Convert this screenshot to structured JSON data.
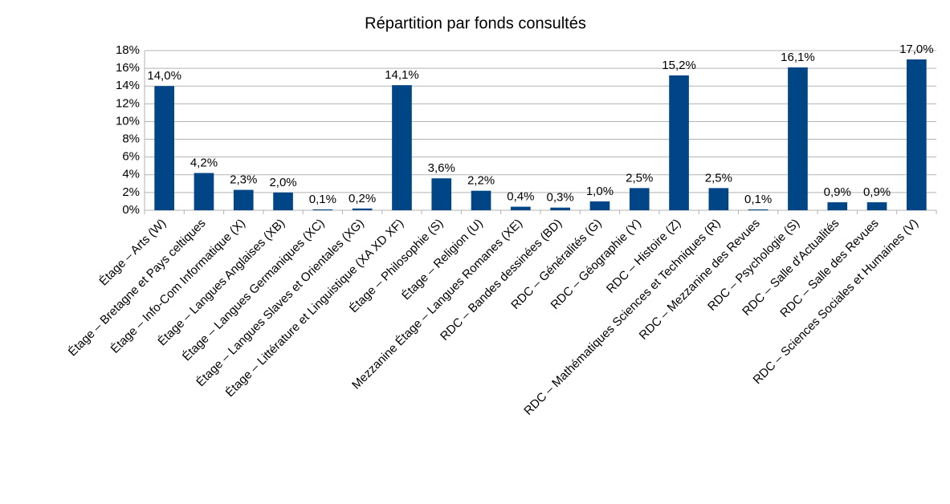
{
  "chart_data": {
    "type": "bar",
    "title": "Répartition par fonds consultés",
    "categories": [
      "Étage – Arts (W)",
      "Étage – Bretagne et Pays celtiques",
      "Étage – Info-Com Informatique (X)",
      "Étage – Langues Anglaises (XB)",
      "Étage – Langues Germaniques (XC)",
      "Étage – Langues Slaves et Orientales (XG)",
      "Étage – Littérature et Linguistique (XA XD XF)",
      "Étage – Philosophie (S)",
      "Étage – Religion (U)",
      "Mezzanine Étage – Langues Romanes (XE)",
      "RDC – Bandes dessinées (BD)",
      "RDC – Généralités (G)",
      "RDC – Géographie (Y)",
      "RDC – Histoire (Z)",
      "RDC – Mathématiques Sciences et Techniques (R)",
      "RDC – Mezzanine des Revues",
      "RDC – Psychologie (S)",
      "RDC – Salle d'Actualités",
      "RDC – Salle des Revues",
      "RDC – Sciences Sociales et Humaines (V)"
    ],
    "values": [
      14.0,
      4.2,
      2.3,
      2.0,
      0.1,
      0.2,
      14.1,
      3.6,
      2.2,
      0.4,
      0.3,
      1.0,
      2.5,
      15.2,
      2.5,
      0.1,
      16.1,
      0.9,
      0.9,
      17.0
    ],
    "value_labels": [
      "14,0%",
      "4,2%",
      "2,3%",
      "2,0%",
      "0,1%",
      "0,2%",
      "14,1%",
      "3,6%",
      "2,2%",
      "0,4%",
      "0,3%",
      "1,0%",
      "2,5%",
      "15,2%",
      "2,5%",
      "0,1%",
      "16,1%",
      "0,9%",
      "0,9%",
      "17,0%"
    ],
    "color": "#004586",
    "ylim": [
      0,
      18
    ],
    "yticks": [
      {
        "value": 0,
        "label": "0%"
      },
      {
        "value": 2,
        "label": "2%"
      },
      {
        "value": 4,
        "label": "4%"
      },
      {
        "value": 6,
        "label": "6%"
      },
      {
        "value": 8,
        "label": "8%"
      },
      {
        "value": 10,
        "label": "10%"
      },
      {
        "value": 12,
        "label": "12%"
      },
      {
        "value": 14,
        "label": "14%"
      },
      {
        "value": 16,
        "label": "16%"
      },
      {
        "value": 18,
        "label": "18%"
      }
    ],
    "grid": true
  }
}
